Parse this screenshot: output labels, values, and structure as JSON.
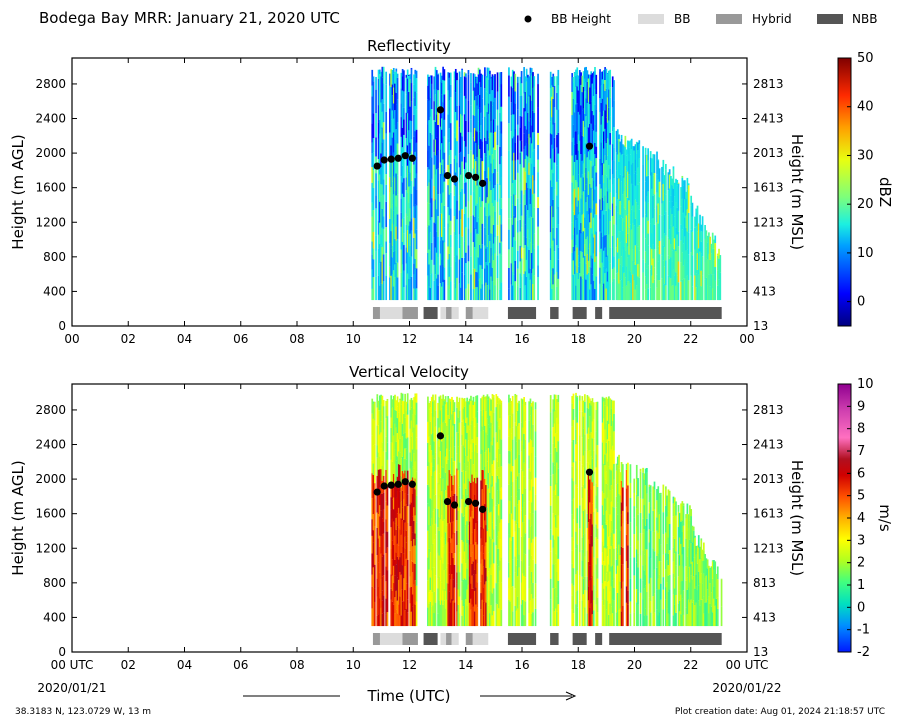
{
  "header": {
    "title": "Bodega Bay MRR:  January 21, 2020 UTC",
    "legend": [
      {
        "label": "BB Height",
        "kind": "dot",
        "color": "#000000"
      },
      {
        "label": "BB",
        "kind": "bar",
        "color": "#dcdcdc"
      },
      {
        "label": "Hybrid",
        "kind": "bar",
        "color": "#999999"
      },
      {
        "label": "NBB",
        "kind": "bar",
        "color": "#555555"
      }
    ]
  },
  "footer": {
    "location": "38.3183 N, 123.0729 W, 13 m",
    "creation": "Plot creation date: Aug 01, 2024 21:18:57 UTC",
    "xlabel": "Time (UTC)",
    "start_date": "2020/01/21",
    "end_date": "2020/01/22"
  },
  "chart_data": [
    {
      "type": "heatmap",
      "title": "Reflectivity",
      "ylabel_left": "Height (m AGL)",
      "ylabel_right": "Height (m MSL)",
      "colorbar_label": "dBZ",
      "colorbar_ticks": [
        0,
        10,
        20,
        30,
        40,
        50
      ],
      "colorbar_range": [
        -5,
        50
      ],
      "xlim": [
        0,
        24
      ],
      "ylim": [
        0,
        3100
      ],
      "x_ticks": [
        "00",
        "02",
        "04",
        "06",
        "08",
        "10",
        "12",
        "14",
        "16",
        "18",
        "20",
        "22",
        "00"
      ],
      "y_ticks_left": [
        0,
        400,
        800,
        1200,
        1600,
        2000,
        2400,
        2800
      ],
      "y_ticks_right": [
        13,
        413,
        813,
        1213,
        1613,
        2013,
        2413,
        2813
      ],
      "data_extent": {
        "x": [
          10.6,
          23.1
        ],
        "y": [
          300,
          3000
        ]
      },
      "bb_height": [
        {
          "x": 10.85,
          "y": 1850
        },
        {
          "x": 11.1,
          "y": 1920
        },
        {
          "x": 11.35,
          "y": 1930
        },
        {
          "x": 11.6,
          "y": 1940
        },
        {
          "x": 11.85,
          "y": 1970
        },
        {
          "x": 12.1,
          "y": 1940
        },
        {
          "x": 13.1,
          "y": 2500
        },
        {
          "x": 13.35,
          "y": 1740
        },
        {
          "x": 13.6,
          "y": 1700
        },
        {
          "x": 14.1,
          "y": 1740
        },
        {
          "x": 14.35,
          "y": 1720
        },
        {
          "x": 14.6,
          "y": 1650
        },
        {
          "x": 18.4,
          "y": 2080
        }
      ],
      "bb_type_bars": [
        {
          "start": 10.7,
          "end": 10.95,
          "type": "Hybrid"
        },
        {
          "start": 10.95,
          "end": 11.75,
          "type": "BB"
        },
        {
          "start": 11.75,
          "end": 12.3,
          "type": "Hybrid"
        },
        {
          "start": 12.5,
          "end": 13.0,
          "type": "NBB"
        },
        {
          "start": 13.1,
          "end": 13.3,
          "type": "BB"
        },
        {
          "start": 13.3,
          "end": 13.5,
          "type": "Hybrid"
        },
        {
          "start": 13.5,
          "end": 13.75,
          "type": "BB"
        },
        {
          "start": 14.0,
          "end": 14.25,
          "type": "Hybrid"
        },
        {
          "start": 14.25,
          "end": 14.8,
          "type": "BB"
        },
        {
          "start": 15.5,
          "end": 16.5,
          "type": "NBB"
        },
        {
          "start": 17.0,
          "end": 17.3,
          "type": "NBB"
        },
        {
          "start": 17.8,
          "end": 18.3,
          "type": "NBB"
        },
        {
          "start": 18.6,
          "end": 18.85,
          "type": "NBB"
        },
        {
          "start": 19.1,
          "end": 23.1,
          "type": "NBB"
        }
      ]
    },
    {
      "type": "heatmap",
      "title": "Vertical Velocity",
      "ylabel_left": "Height (m AGL)",
      "ylabel_right": "Height (m MSL)",
      "colorbar_label": "m/s",
      "colorbar_ticks": [
        -2,
        -1,
        0,
        1,
        2,
        3,
        4,
        5,
        6,
        7,
        8,
        9,
        10
      ],
      "colorbar_range": [
        -2,
        10
      ],
      "xlim": [
        0,
        24
      ],
      "ylim": [
        0,
        3100
      ],
      "x_ticks": [
        "00 UTC",
        "02",
        "04",
        "06",
        "08",
        "10",
        "12",
        "14",
        "16",
        "18",
        "20",
        "22",
        "00 UTC"
      ],
      "y_ticks_left": [
        0,
        400,
        800,
        1200,
        1600,
        2000,
        2400,
        2800
      ],
      "y_ticks_right": [
        13,
        413,
        813,
        1213,
        1613,
        2013,
        2413,
        2813
      ],
      "data_extent": {
        "x": [
          10.6,
          23.1
        ],
        "y": [
          300,
          3000
        ]
      },
      "bb_height": [
        {
          "x": 10.85,
          "y": 1850
        },
        {
          "x": 11.1,
          "y": 1920
        },
        {
          "x": 11.35,
          "y": 1930
        },
        {
          "x": 11.6,
          "y": 1940
        },
        {
          "x": 11.85,
          "y": 1970
        },
        {
          "x": 12.1,
          "y": 1940
        },
        {
          "x": 13.1,
          "y": 2500
        },
        {
          "x": 13.35,
          "y": 1740
        },
        {
          "x": 13.6,
          "y": 1700
        },
        {
          "x": 14.1,
          "y": 1740
        },
        {
          "x": 14.35,
          "y": 1720
        },
        {
          "x": 14.6,
          "y": 1650
        },
        {
          "x": 18.4,
          "y": 2080
        }
      ],
      "bb_type_bars": [
        {
          "start": 10.7,
          "end": 10.95,
          "type": "Hybrid"
        },
        {
          "start": 10.95,
          "end": 11.75,
          "type": "BB"
        },
        {
          "start": 11.75,
          "end": 12.3,
          "type": "Hybrid"
        },
        {
          "start": 12.5,
          "end": 13.0,
          "type": "NBB"
        },
        {
          "start": 13.1,
          "end": 13.3,
          "type": "BB"
        },
        {
          "start": 13.3,
          "end": 13.5,
          "type": "Hybrid"
        },
        {
          "start": 13.5,
          "end": 13.75,
          "type": "BB"
        },
        {
          "start": 14.0,
          "end": 14.25,
          "type": "Hybrid"
        },
        {
          "start": 14.25,
          "end": 14.8,
          "type": "BB"
        },
        {
          "start": 15.5,
          "end": 16.5,
          "type": "NBB"
        },
        {
          "start": 17.0,
          "end": 17.3,
          "type": "NBB"
        },
        {
          "start": 17.8,
          "end": 18.3,
          "type": "NBB"
        },
        {
          "start": 18.6,
          "end": 18.85,
          "type": "NBB"
        },
        {
          "start": 19.1,
          "end": 23.1,
          "type": "NBB"
        }
      ]
    }
  ]
}
